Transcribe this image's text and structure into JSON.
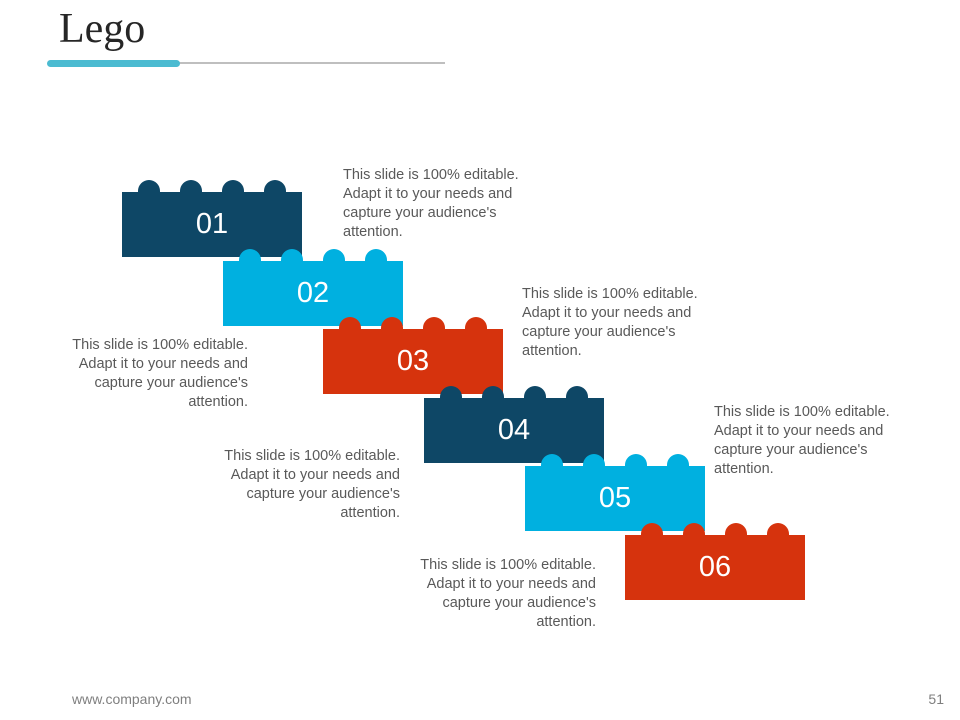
{
  "title": "Lego",
  "colors": {
    "navy": "#0e4766",
    "cyan": "#00b0e0",
    "red": "#d6330d",
    "accent": "#4bbbd1"
  },
  "bricks": [
    {
      "number": "01",
      "color": "navy"
    },
    {
      "number": "02",
      "color": "cyan"
    },
    {
      "number": "03",
      "color": "red"
    },
    {
      "number": "04",
      "color": "navy"
    },
    {
      "number": "05",
      "color": "cyan"
    },
    {
      "number": "06",
      "color": "red"
    }
  ],
  "descriptions": [
    "This slide is 100% editable. Adapt it to your needs and capture your audience's attention.",
    "This slide is 100% editable. Adapt it to your needs and capture your audience's attention.",
    "This slide is 100% editable. Adapt it to your needs and capture your audience's attention.",
    "This slide is 100% editable. Adapt it to your needs and capture your audience's attention.",
    "This slide is 100% editable. Adapt it to your needs and capture your audience's attention.",
    "This slide is 100% editable. Adapt it to your needs and capture your audience's attention."
  ],
  "footer": {
    "url": "www.company.com",
    "page": "51"
  }
}
